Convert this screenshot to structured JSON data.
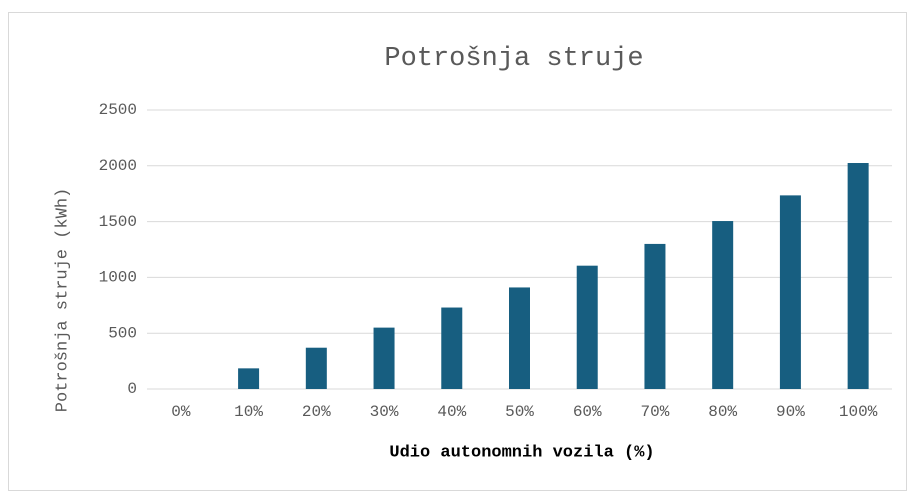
{
  "chart_data": {
    "type": "bar",
    "title": "Potrošnja struje",
    "x_label": "Udio autonomnih vozila (%)",
    "y_label": "Potrošnja struje (kWh)",
    "categories": [
      "0%",
      "10%",
      "20%",
      "30%",
      "40%",
      "50%",
      "60%",
      "70%",
      "80%",
      "90%",
      "100%"
    ],
    "values": [
      0,
      185,
      370,
      550,
      730,
      910,
      1105,
      1300,
      1505,
      1735,
      2025
    ],
    "color": "#175e80",
    "ylim": [
      0,
      2500
    ],
    "yticks": [
      0,
      500,
      1000,
      1500,
      2000,
      2500
    ],
    "grid": true
  }
}
